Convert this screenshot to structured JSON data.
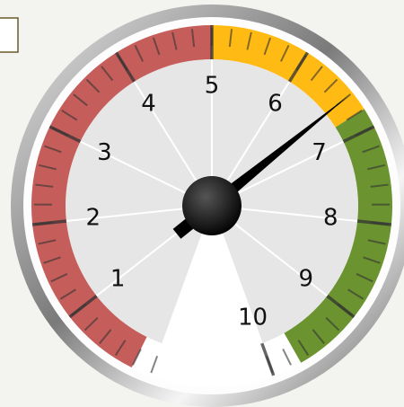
{
  "chart_data": {
    "type": "gauge",
    "value": 6.6,
    "xlim": [
      0,
      10
    ],
    "ticks": [
      1,
      2,
      3,
      4,
      5,
      6,
      7,
      8,
      9,
      10
    ],
    "minor_tick_step": 0.2,
    "bands": [
      {
        "from": 0.2,
        "to": 5,
        "color": "#c0504d"
      },
      {
        "from": 5,
        "to": 6.8,
        "color": "#ffb400"
      },
      {
        "from": 6.8,
        "to": 9.7,
        "color": "#5e8a1e"
      }
    ],
    "needle_color": "#000000"
  }
}
